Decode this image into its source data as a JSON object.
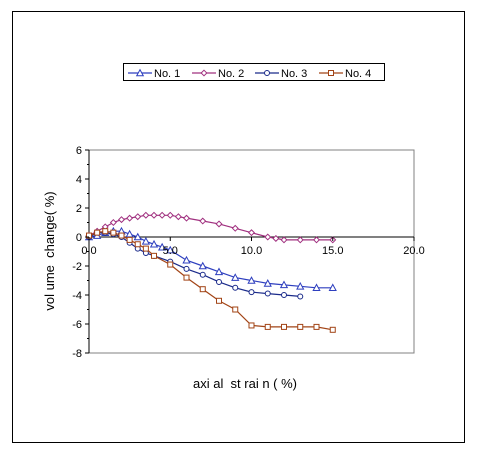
{
  "chart_data": {
    "type": "line",
    "title": "",
    "xlabel": "axi al  st rai n ( %)",
    "ylabel": "vol ume  change( %)",
    "xlim": [
      0,
      20
    ],
    "ylim": [
      -8,
      6
    ],
    "x_ticks": [
      0,
      5,
      10,
      15,
      20
    ],
    "x_tick_labels": [
      "0.0",
      "5.0",
      "10.0",
      "15.0",
      "20.0"
    ],
    "y_ticks": [
      -8,
      -6,
      -4,
      -2,
      0,
      2,
      4,
      6
    ],
    "y_tick_labels": [
      "-8",
      "-6",
      "-4",
      "-2",
      "0",
      "2",
      "4",
      "6"
    ],
    "grid": false,
    "legend_position": "top",
    "series": [
      {
        "name": "No. 1",
        "color": "#2e3fbf",
        "marker": "triangle",
        "x": [
          0,
          0.5,
          1.0,
          1.5,
          2.0,
          2.5,
          3.0,
          3.5,
          4.0,
          4.5,
          5.0,
          6.0,
          7.0,
          8.0,
          9.0,
          10.0,
          11.0,
          12.0,
          13.0,
          14.0,
          15.0
        ],
        "y": [
          0.0,
          0.1,
          0.3,
          0.4,
          0.4,
          0.2,
          0.0,
          -0.3,
          -0.5,
          -0.7,
          -0.9,
          -1.6,
          -2.0,
          -2.4,
          -2.8,
          -3.0,
          -3.2,
          -3.3,
          -3.4,
          -3.5,
          -3.5
        ]
      },
      {
        "name": "No. 2",
        "color": "#a0307f",
        "marker": "diamond",
        "x": [
          0,
          0.5,
          1.0,
          1.5,
          2.0,
          2.5,
          3.0,
          3.5,
          4.0,
          4.5,
          5.0,
          5.5,
          6.0,
          7.0,
          8.0,
          9.0,
          10.0,
          11.0,
          11.5,
          12.0,
          13.0,
          14.0,
          15.0
        ],
        "y": [
          0.1,
          0.4,
          0.7,
          1.0,
          1.2,
          1.3,
          1.4,
          1.5,
          1.5,
          1.5,
          1.5,
          1.4,
          1.3,
          1.1,
          0.9,
          0.6,
          0.3,
          0.0,
          -0.1,
          -0.2,
          -0.2,
          -0.2,
          -0.2
        ]
      },
      {
        "name": "No. 3",
        "color": "#1a2a8a",
        "marker": "circle",
        "x": [
          0,
          0.5,
          1.0,
          1.5,
          2.0,
          2.5,
          3.0,
          3.5,
          4.0,
          5.0,
          6.0,
          7.0,
          8.0,
          9.0,
          10.0,
          11.0,
          12.0,
          13.0
        ],
        "y": [
          0.0,
          0.3,
          0.3,
          0.2,
          0.0,
          -0.4,
          -0.8,
          -1.1,
          -1.3,
          -1.7,
          -2.2,
          -2.6,
          -3.1,
          -3.5,
          -3.8,
          -3.9,
          -4.0,
          -4.1
        ]
      },
      {
        "name": "No. 4",
        "color": "#a24416",
        "marker": "square",
        "x": [
          0,
          0.5,
          1.0,
          1.5,
          2.0,
          2.5,
          3.0,
          3.5,
          4.0,
          5.0,
          6.0,
          7.0,
          8.0,
          9.0,
          10.0,
          11.0,
          12.0,
          13.0,
          14.0,
          15.0
        ],
        "y": [
          0.1,
          0.3,
          0.4,
          0.3,
          0.1,
          -0.2,
          -0.5,
          -0.8,
          -1.3,
          -1.9,
          -2.8,
          -3.6,
          -4.4,
          -5.0,
          -6.1,
          -6.2,
          -6.2,
          -6.2,
          -6.2,
          -6.4
        ]
      }
    ]
  }
}
